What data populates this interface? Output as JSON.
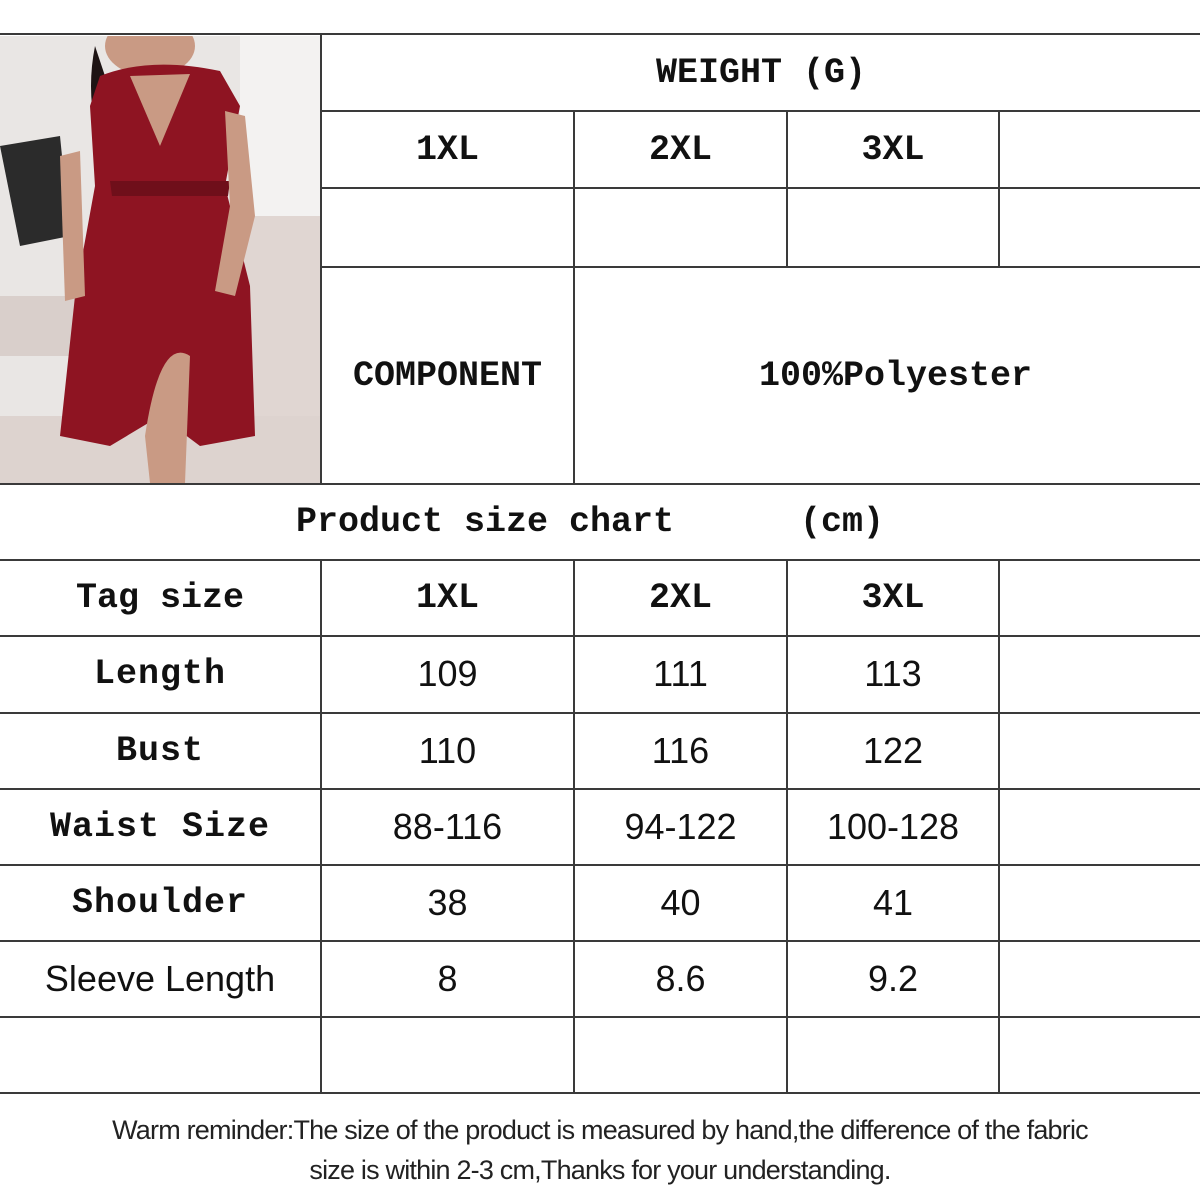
{
  "weight_header": "WEIGHT (G)",
  "weight_sizes": [
    "1XL",
    "2XL",
    "3XL",
    ""
  ],
  "weight_values": [
    "",
    "",
    "",
    ""
  ],
  "component_label": "COMPONENT",
  "component_value": "100%Polyester",
  "size_chart_title": "Product size chart      (cm)",
  "size_table": {
    "header": [
      "Tag size",
      "1XL",
      "2XL",
      "3XL",
      ""
    ],
    "rows": [
      [
        "Length",
        "109",
        "111",
        "113",
        ""
      ],
      [
        "Bust",
        "110",
        "116",
        "122",
        ""
      ],
      [
        "Waist Size",
        "88-116",
        "94-122",
        "100-128",
        ""
      ],
      [
        "Shoulder",
        "38",
        "40",
        "41",
        ""
      ],
      [
        "Sleeve Length",
        "8",
        "8.6",
        "9.2",
        ""
      ],
      [
        "",
        "",
        "",
        "",
        ""
      ]
    ]
  },
  "reminder_line1": "Warm reminder:The size of the product is measured by hand,the difference of the fabric",
  "reminder_line2": "size is within 2-3 cm,Thanks for your understanding.",
  "colors": {
    "dress": "#8e1422",
    "lines": "#3a3a3a"
  }
}
